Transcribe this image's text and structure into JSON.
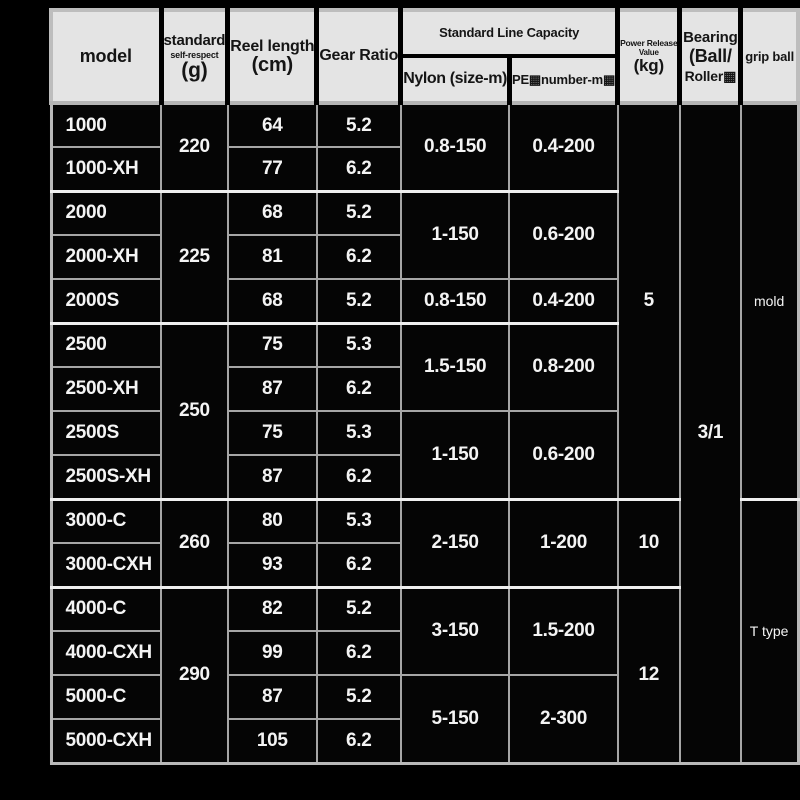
{
  "header": {
    "model": "model",
    "standard": {
      "line1": "standard",
      "line2": "self-respect",
      "line3": "(g)"
    },
    "reel": {
      "line1": "Reel length",
      "line2": "(cm)"
    },
    "gear": "Gear Ratio",
    "capacity": "Standard Line Capacity",
    "nylon": "Nylon (size-m)",
    "pe": "PE▦number-m▦",
    "power": {
      "line1": "Power Release",
      "line2": "Value",
      "line3": "(kg)"
    },
    "bearing": {
      "line1": "Bearing",
      "line2": "(Ball/",
      "line3": "Roller▦"
    },
    "grip": "grip ball"
  },
  "body": {
    "models": [
      "1000",
      "1000-XH",
      "2000",
      "2000-XH",
      "2000S",
      "2500",
      "2500-XH",
      "2500S",
      "2500S-XH",
      "3000-C",
      "3000-CXH",
      "4000-C",
      "4000-CXH",
      "5000-C",
      "5000-CXH"
    ],
    "reel_lengths": [
      "64",
      "77",
      "68",
      "81",
      "68",
      "75",
      "87",
      "75",
      "87",
      "80",
      "93",
      "82",
      "99",
      "87",
      "105"
    ],
    "gear_ratios": [
      "5.2",
      "6.2",
      "5.2",
      "6.2",
      "5.2",
      "5.3",
      "6.2",
      "5.3",
      "6.2",
      "5.3",
      "6.2",
      "5.2",
      "6.2",
      "5.2",
      "6.2"
    ],
    "standard_weights": [
      {
        "value": "220",
        "span": 2
      },
      {
        "value": "225",
        "span": 3
      },
      {
        "value": "250",
        "span": 4
      },
      {
        "value": "260",
        "span": 2
      },
      {
        "value": "290",
        "span": 4
      }
    ],
    "nylon": [
      {
        "value": "0.8-150",
        "span": 2
      },
      {
        "value": "1-150",
        "span": 2
      },
      {
        "value": "0.8-150",
        "span": 1
      },
      {
        "value": "1.5-150",
        "span": 2
      },
      {
        "value": "1-150",
        "span": 2
      },
      {
        "value": "2-150",
        "span": 2
      },
      {
        "value": "3-150",
        "span": 2
      },
      {
        "value": "5-150",
        "span": 2
      }
    ],
    "pe": [
      {
        "value": "0.4-200",
        "span": 2
      },
      {
        "value": "0.6-200",
        "span": 2
      },
      {
        "value": "0.4-200",
        "span": 1
      },
      {
        "value": "0.8-200",
        "span": 2
      },
      {
        "value": "0.6-200",
        "span": 2
      },
      {
        "value": "1-200",
        "span": 2
      },
      {
        "value": "1.5-200",
        "span": 2
      },
      {
        "value": "2-300",
        "span": 2
      }
    ],
    "power": [
      {
        "value": "5",
        "span": 9
      },
      {
        "value": "10",
        "span": 2
      },
      {
        "value": "12",
        "span": 4
      }
    ],
    "bearing": [
      {
        "value": "3/1",
        "span": 15
      }
    ],
    "grip": [
      {
        "value": "mold",
        "span": 9
      },
      {
        "value": "T type",
        "span": 6
      }
    ]
  },
  "colors": {
    "page_bg": "#000000",
    "header_bg": "#e4e4e4",
    "header_text": "#151515",
    "body_bg": "#050505",
    "body_text": "#f4f4f4",
    "grid_gray": "#a6a6a6",
    "grid_white": "#f0f0f0"
  },
  "chart_data": {
    "type": "table",
    "title": "Fishing reel specification table",
    "columns": [
      "model",
      "standard self-respect (g)",
      "Reel length (cm)",
      "Gear Ratio",
      "Nylon (size-m)",
      "PE▦number-m▦",
      "Power Release Value (kg)",
      "Bearing (Ball/Roller▦",
      "grip ball"
    ],
    "column_groups": [
      {
        "label": "Standard Line Capacity",
        "covers": [
          "Nylon (size-m)",
          "PE▦number-m▦"
        ]
      }
    ],
    "rows": [
      [
        "1000",
        "220",
        "64",
        "5.2",
        "0.8-150",
        "0.4-200",
        "5",
        "3/1",
        "mold"
      ],
      [
        "1000-XH",
        "220",
        "77",
        "6.2",
        "0.8-150",
        "0.4-200",
        "5",
        "3/1",
        "mold"
      ],
      [
        "2000",
        "225",
        "68",
        "5.2",
        "1-150",
        "0.6-200",
        "5",
        "3/1",
        "mold"
      ],
      [
        "2000-XH",
        "225",
        "81",
        "6.2",
        "1-150",
        "0.6-200",
        "5",
        "3/1",
        "mold"
      ],
      [
        "2000S",
        "225",
        "68",
        "5.2",
        "0.8-150",
        "0.4-200",
        "5",
        "3/1",
        "mold"
      ],
      [
        "2500",
        "250",
        "75",
        "5.3",
        "1.5-150",
        "0.8-200",
        "5",
        "3/1",
        "mold"
      ],
      [
        "2500-XH",
        "250",
        "87",
        "6.2",
        "1.5-150",
        "0.8-200",
        "5",
        "3/1",
        "mold"
      ],
      [
        "2500S",
        "250",
        "75",
        "5.3",
        "1-150",
        "0.6-200",
        "5",
        "3/1",
        "mold"
      ],
      [
        "2500S-XH",
        "250",
        "87",
        "6.2",
        "1-150",
        "0.6-200",
        "5",
        "3/1",
        "mold"
      ],
      [
        "3000-C",
        "260",
        "80",
        "5.3",
        "2-150",
        "1-200",
        "10",
        "3/1",
        "T type"
      ],
      [
        "3000-CXH",
        "260",
        "93",
        "6.2",
        "2-150",
        "1-200",
        "10",
        "3/1",
        "T type"
      ],
      [
        "4000-C",
        "290",
        "82",
        "5.2",
        "3-150",
        "1.5-200",
        "12",
        "3/1",
        "T type"
      ],
      [
        "4000-CXH",
        "290",
        "99",
        "6.2",
        "3-150",
        "1.5-200",
        "12",
        "3/1",
        "T type"
      ],
      [
        "5000-C",
        "290",
        "87",
        "5.2",
        "5-150",
        "2-300",
        "12",
        "3/1",
        "T type"
      ],
      [
        "5000-CXH",
        "290",
        "105",
        "6.2",
        "5-150",
        "2-300",
        "12",
        "3/1",
        "T type"
      ]
    ]
  }
}
